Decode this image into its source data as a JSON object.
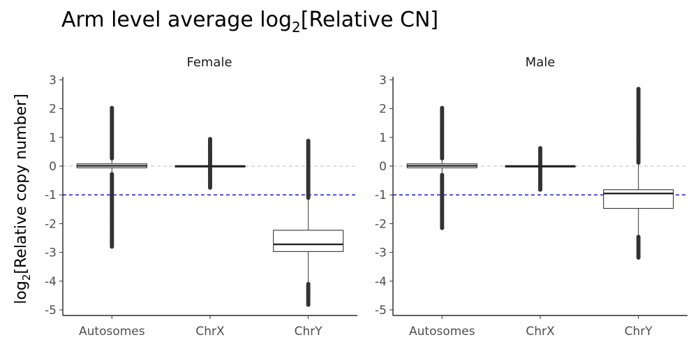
{
  "chart_data": {
    "type": "boxplot",
    "title": "Arm level average log",
    "title_subscript": "2",
    "title_suffix": "[Relative CN]",
    "ylabel": "log",
    "ylabel_subscript": "2",
    "ylabel_suffix": "[Relative copy number]",
    "xlabel": "",
    "categories": [
      "Autosomes",
      "ChrX",
      "ChrY"
    ],
    "yticks": [
      3,
      2,
      1,
      0,
      -1,
      -2,
      -3,
      -4,
      -5
    ],
    "ytick_labels": [
      "3",
      "2",
      "1",
      "0",
      "-1",
      "-2",
      "-3",
      "-4",
      "-5"
    ],
    "ylim": [
      -5.1,
      3.1
    ],
    "reference_lines": [
      {
        "y": 0,
        "color": "#bdbdbd",
        "style": "dashed"
      },
      {
        "y": -1,
        "color": "#0000ff",
        "style": "dashed"
      }
    ],
    "grid": false,
    "facets": [
      {
        "label": "Female",
        "boxes": [
          {
            "category": "Autosomes",
            "q1": -0.06,
            "median": 0.01,
            "q3": 0.08,
            "whisker_low": -0.25,
            "whisker_high": 0.25,
            "outliers_low": [
              -0.27,
              -3.2,
              -2.8
            ],
            "outliers_high": [
              0.27,
              1.6,
              1.75,
              1.85,
              2.05
            ]
          },
          {
            "category": "ChrX",
            "q1": -0.015,
            "median": 0.0,
            "q3": 0.015,
            "whisker_low": -0.03,
            "whisker_high": 0.03,
            "outliers_low": [
              -0.04,
              -0.75
            ],
            "outliers_high": [
              0.04,
              0.8,
              0.95
            ]
          },
          {
            "category": "ChrY",
            "q1": -2.97,
            "median": -2.72,
            "q3": -2.23,
            "whisker_low": -4.05,
            "whisker_high": -1.12,
            "outliers_low": [
              -4.1,
              -4.82
            ],
            "outliers_high": [
              -1.1,
              0.05,
              0.45,
              0.7,
              0.92
            ]
          }
        ]
      },
      {
        "label": "Male",
        "boxes": [
          {
            "category": "Autosomes",
            "q1": -0.06,
            "median": 0.01,
            "q3": 0.08,
            "whisker_low": -0.25,
            "whisker_high": 0.25,
            "outliers_low": [
              -0.27,
              -2.15
            ],
            "outliers_high": [
              0.27,
              1.6,
              1.9,
              2.05
            ]
          },
          {
            "category": "ChrX",
            "q1": -0.015,
            "median": 0.0,
            "q3": 0.015,
            "whisker_low": -0.03,
            "whisker_high": 0.03,
            "outliers_low": [
              -0.04,
              -0.82
            ],
            "outliers_high": [
              0.04,
              0.65
            ]
          },
          {
            "category": "ChrY",
            "q1": -1.47,
            "median": -0.95,
            "q3": -0.82,
            "whisker_low": -2.4,
            "whisker_high": 0.1,
            "outliers_low": [
              -2.42,
              -3.18
            ],
            "outliers_high": [
              0.12,
              1.7,
              2.1,
              2.3,
              2.55,
              2.72
            ]
          }
        ]
      }
    ]
  }
}
